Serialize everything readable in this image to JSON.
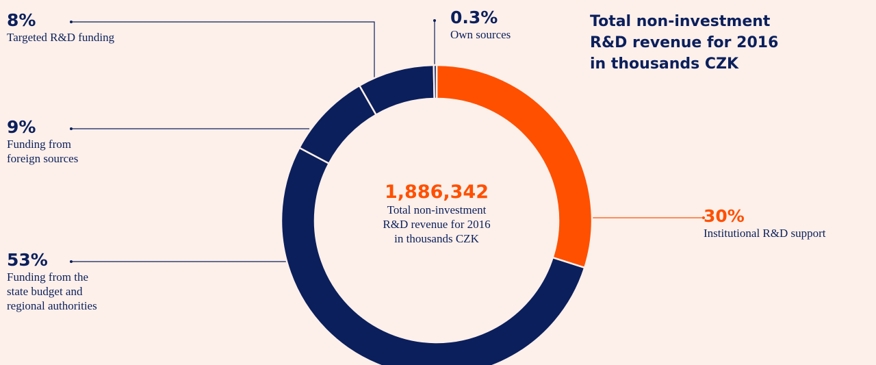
{
  "chart_data": {
    "type": "donut",
    "title": "Total non-investment\nR&D revenue for 2016\nin thousands CZK",
    "center_text": "1,886,342",
    "center_caption": "Total non-investment\nR&D revenue for 2016\nin thousands CZK",
    "categories": [
      "Institutional R&D support",
      "Funding from the\nstate budget and\nregional authorities",
      "Funding from\nforeign sources",
      "Targeted R&D funding",
      "Own sources"
    ],
    "values": [
      30,
      53,
      9,
      8,
      0.3
    ],
    "value_labels": [
      "30%",
      "53%",
      "9%",
      "8%",
      "0.3%"
    ],
    "colors": [
      "#ff5000",
      "#0b1f5c",
      "#0b1f5c",
      "#0b1f5c",
      "#0b1f5c"
    ]
  }
}
